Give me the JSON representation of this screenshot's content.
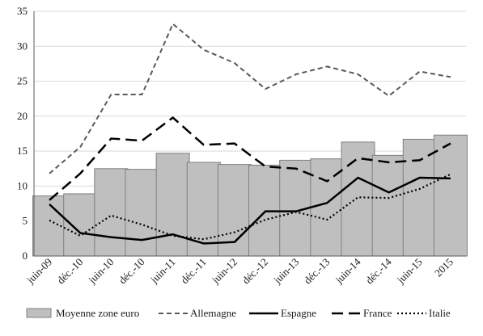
{
  "chart_data": {
    "type": "bar",
    "categories": [
      "juin-09",
      "déc.-10",
      "juin-10",
      "déc.-10",
      "juin-11",
      "déc.-11",
      "juin-12",
      "déc.-12",
      "juin-13",
      "déc.-13",
      "juin-14",
      "déc.-14",
      "juin-15",
      "2015"
    ],
    "ylim": [
      0,
      35
    ],
    "yticks": [
      0,
      5,
      10,
      15,
      20,
      25,
      30,
      35
    ],
    "grid": true,
    "legend": "bottom",
    "bars": {
      "name": "Moyenne zone euro",
      "color": "#bfbfbf",
      "values": [
        8.6,
        8.9,
        12.5,
        12.4,
        14.7,
        13.4,
        13.1,
        13.0,
        13.7,
        13.9,
        16.3,
        14.4,
        16.7,
        17.3
      ]
    },
    "series": [
      {
        "name": "Allemagne",
        "style": "short-dash",
        "color": "#595959",
        "values": [
          11.8,
          15.6,
          23.1,
          23.1,
          33.2,
          29.5,
          27.6,
          23.9,
          26.0,
          27.1,
          26.0,
          22.9,
          26.4,
          25.6
        ]
      },
      {
        "name": "Espagne",
        "style": "solid",
        "color": "#000000",
        "values": [
          7.4,
          3.3,
          2.7,
          2.3,
          3.1,
          1.8,
          2.0,
          6.4,
          6.4,
          7.6,
          11.2,
          9.1,
          11.2,
          11.1
        ]
      },
      {
        "name": "France",
        "style": "long-dash",
        "color": "#000000",
        "values": [
          8.0,
          11.8,
          16.8,
          16.5,
          19.8,
          15.9,
          16.1,
          12.8,
          12.5,
          10.7,
          14.0,
          13.4,
          13.7,
          16.1
        ]
      },
      {
        "name": "Italie",
        "style": "dotted",
        "color": "#000000",
        "values": [
          5.1,
          2.9,
          5.8,
          4.5,
          2.9,
          2.4,
          3.4,
          5.2,
          6.3,
          5.2,
          8.4,
          8.3,
          9.6,
          11.7
        ]
      }
    ]
  }
}
